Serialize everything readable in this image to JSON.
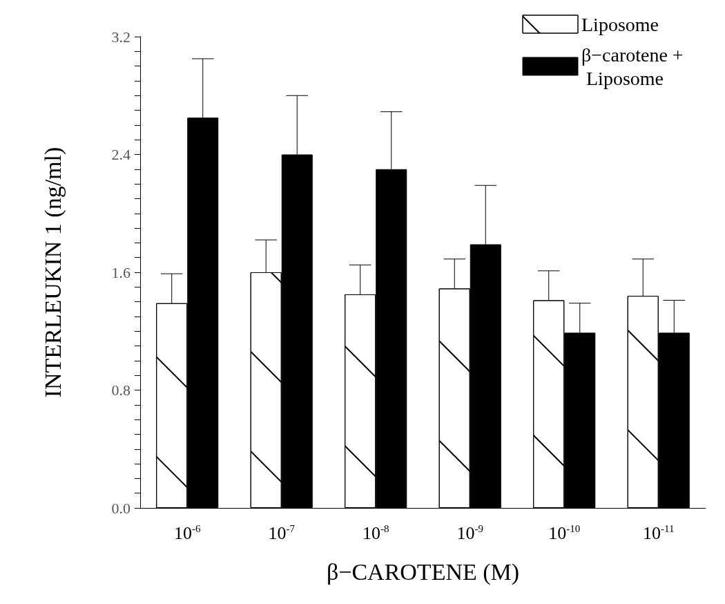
{
  "chart_data": {
    "type": "bar",
    "xlabel": "β−CAROTENE (M)",
    "ylabel": "INTERLEUKIN 1 (ng/ml)",
    "categories": [
      "10$^{-6}$",
      "10$^{-7}$",
      "10$^{-8}$",
      "10$^{-9}$",
      "10$^{-10}$",
      "10$^{-11}$"
    ],
    "series": [
      {
        "name": "Liposome",
        "color": "#ffffff",
        "values": [
          1.39,
          1.6,
          1.45,
          1.49,
          1.41,
          1.44
        ],
        "errors": [
          [
            1.39,
            1.59
          ],
          [
            1.6,
            1.82
          ],
          [
            1.45,
            1.65
          ],
          [
            1.49,
            1.69
          ],
          [
            1.41,
            1.61
          ],
          [
            1.44,
            1.69
          ]
        ]
      },
      {
        "name": "β−carotene + Liposome",
        "color": "#000000",
        "values": [
          2.65,
          2.4,
          2.3,
          1.79,
          1.19,
          1.19
        ],
        "errors": [
          [
            2.65,
            3.05
          ],
          [
            2.4,
            2.8
          ],
          [
            2.3,
            2.69
          ],
          [
            1.79,
            2.19
          ],
          [
            1.19,
            1.39
          ],
          [
            1.19,
            1.41
          ]
        ]
      }
    ],
    "ylim": [
      0,
      3.2
    ],
    "yticks": [
      {
        "value": 0,
        "label": "0.0"
      },
      {
        "value": 0.1,
        "label": null
      },
      {
        "value": 0.2,
        "label": null
      },
      {
        "value": 0.3,
        "label": null
      },
      {
        "value": 0.4,
        "label": null
      },
      {
        "value": 0.5,
        "label": null
      },
      {
        "value": 0.6,
        "label": null
      },
      {
        "value": 0.7,
        "label": null
      },
      0.8,
      {
        "value": 0.9,
        "label": null
      },
      {
        "value": 1.0,
        "label": null
      },
      {
        "value": 1.1,
        "label": null
      },
      {
        "value": 1.2,
        "label": null
      },
      {
        "value": 1.3,
        "label": null
      },
      {
        "value": 1.4,
        "label": null
      },
      {
        "value": 1.5,
        "label": null
      },
      1.6,
      {
        "value": 1.7,
        "label": null
      },
      {
        "value": 1.8,
        "label": null
      },
      {
        "value": 1.9,
        "label": null
      },
      {
        "value": 2.0,
        "label": null
      },
      {
        "value": 2.1,
        "label": null
      },
      {
        "value": 2.2,
        "label": null
      },
      {
        "value": 2.3,
        "label": null
      },
      2.4,
      {
        "value": 2.5,
        "label": null
      },
      {
        "value": 2.6,
        "label": null
      },
      {
        "value": 2.7,
        "label": null
      },
      {
        "value": 2.8,
        "label": null
      },
      {
        "value": 2.9,
        "label": null
      },
      {
        "value": 3.0,
        "label": null
      },
      {
        "value": 3.1,
        "label": null
      },
      3.2
    ],
    "grid": false,
    "legend": "top right"
  }
}
